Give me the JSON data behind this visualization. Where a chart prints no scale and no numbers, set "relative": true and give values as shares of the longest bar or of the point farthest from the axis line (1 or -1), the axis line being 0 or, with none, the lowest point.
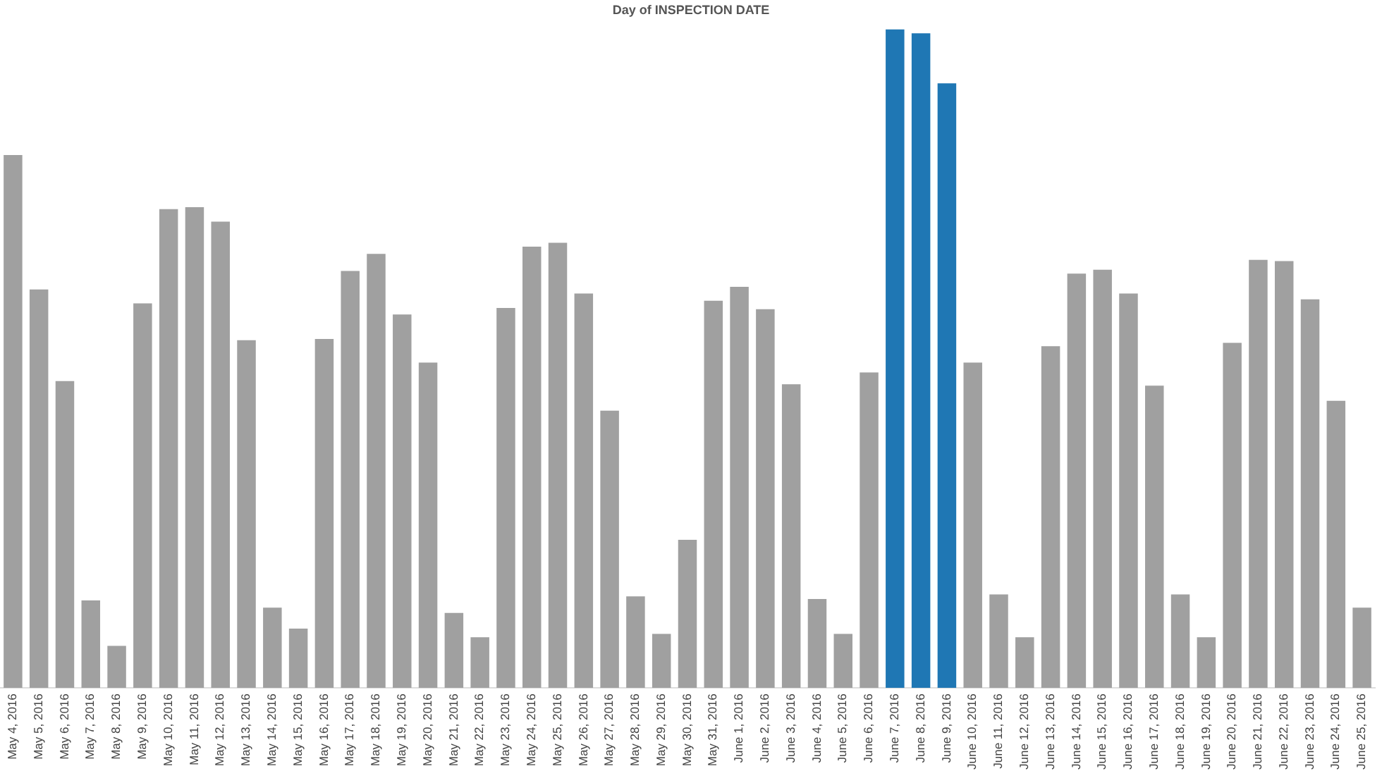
{
  "chart_data": {
    "type": "bar",
    "title": "Day of INSPECTION DATE",
    "relative": true,
    "legend": false,
    "grid": false,
    "categories": [
      "May 4, 2016",
      "May 5, 2016",
      "May 6, 2016",
      "May 7, 2016",
      "May 8, 2016",
      "May 9, 2016",
      "May 10, 2016",
      "May 11, 2016",
      "May 12, 2016",
      "May 13, 2016",
      "May 14, 2016",
      "May 15, 2016",
      "May 16, 2016",
      "May 17, 2016",
      "May 18, 2016",
      "May 19, 2016",
      "May 20, 2016",
      "May 21, 2016",
      "May 22, 2016",
      "May 23, 2016",
      "May 24, 2016",
      "May 25, 2016",
      "May 26, 2016",
      "May 27, 2016",
      "May 28, 2016",
      "May 29, 2016",
      "May 30, 2016",
      "May 31, 2016",
      "June 1, 2016",
      "June 2, 2016",
      "June 3, 2016",
      "June 4, 2016",
      "June 5, 2016",
      "June 6, 2016",
      "June 7, 2016",
      "June 8, 2016",
      "June 9, 2016",
      "June 10, 2016",
      "June 11, 2016",
      "June 12, 2016",
      "June 13, 2016",
      "June 14, 2016",
      "June 15, 2016",
      "June 16, 2016",
      "June 17, 2016",
      "June 18, 2016",
      "June 19, 2016",
      "June 20, 2016",
      "June 21, 2016",
      "June 22, 2016",
      "June 23, 2016",
      "June 24, 2016",
      "June 25, 2016"
    ],
    "values": [
      0.809,
      0.605,
      0.466,
      0.133,
      0.064,
      0.584,
      0.727,
      0.73,
      0.708,
      0.528,
      0.122,
      0.09,
      0.53,
      0.633,
      0.659,
      0.567,
      0.494,
      0.114,
      0.077,
      0.577,
      0.67,
      0.676,
      0.599,
      0.421,
      0.139,
      0.082,
      0.225,
      0.588,
      0.609,
      0.575,
      0.461,
      0.135,
      0.082,
      0.479,
      1,
      0.994,
      0.918,
      0.494,
      0.142,
      0.077,
      0.519,
      0.629,
      0.635,
      0.599,
      0.459,
      0.142,
      0.077,
      0.524,
      0.65,
      0.648,
      0.59,
      0.436,
      0.122
    ],
    "colors": [
      "#a0a0a0",
      "#a0a0a0",
      "#a0a0a0",
      "#a0a0a0",
      "#a0a0a0",
      "#a0a0a0",
      "#a0a0a0",
      "#a0a0a0",
      "#a0a0a0",
      "#a0a0a0",
      "#a0a0a0",
      "#a0a0a0",
      "#a0a0a0",
      "#a0a0a0",
      "#a0a0a0",
      "#a0a0a0",
      "#a0a0a0",
      "#a0a0a0",
      "#a0a0a0",
      "#a0a0a0",
      "#a0a0a0",
      "#a0a0a0",
      "#a0a0a0",
      "#a0a0a0",
      "#a0a0a0",
      "#a0a0a0",
      "#a0a0a0",
      "#a0a0a0",
      "#a0a0a0",
      "#a0a0a0",
      "#a0a0a0",
      "#a0a0a0",
      "#a0a0a0",
      "#a0a0a0",
      "#1f77b4",
      "#1f77b4",
      "#1f77b4",
      "#a0a0a0",
      "#a0a0a0",
      "#a0a0a0",
      "#a0a0a0",
      "#a0a0a0",
      "#a0a0a0",
      "#a0a0a0",
      "#a0a0a0",
      "#a0a0a0",
      "#a0a0a0",
      "#a0a0a0",
      "#a0a0a0",
      "#a0a0a0",
      "#a0a0a0",
      "#a0a0a0",
      "#a0a0a0"
    ]
  }
}
